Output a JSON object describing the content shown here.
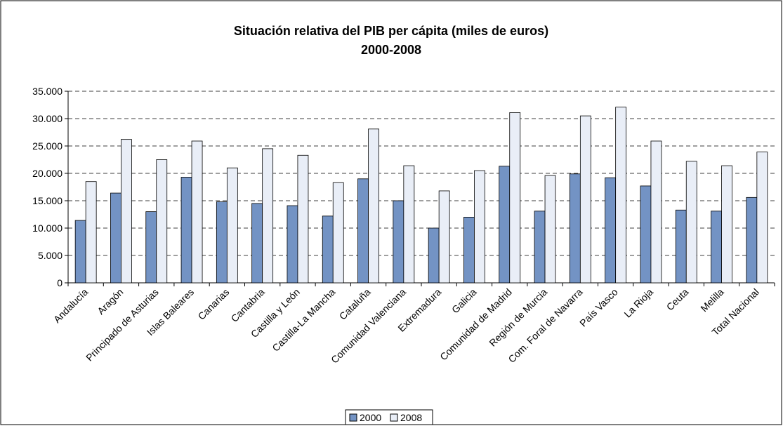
{
  "chart_data": {
    "type": "bar",
    "title": "Situación relativa del PIB per cápita (miles de euros)",
    "subtitle": "2000-2008",
    "categories": [
      "Andalucía",
      "Aragón",
      "Principado de Asturias",
      "Islas Baleares",
      "Canarias",
      "Cantabria",
      "Castilla y León",
      "Castilla-La Mancha",
      "Cataluña",
      "Comunidad Valenciana",
      "Extremadura",
      "Galicia",
      "Comunidad de Madrid",
      "Región de Murcia",
      "Com. Foral de Navarra",
      "País Vasco",
      "La Rioja",
      "Ceuta",
      "Melilla",
      "Total Nacional"
    ],
    "series": [
      {
        "name": "2000",
        "color": "#7393c4",
        "values": [
          11400,
          16400,
          13000,
          19300,
          14800,
          14500,
          14100,
          12200,
          19000,
          15000,
          10000,
          12000,
          21300,
          13100,
          19900,
          19200,
          17700,
          13300,
          13100,
          15600
        ]
      },
      {
        "name": "2008",
        "color": "#e9eef7",
        "values": [
          18500,
          26200,
          22500,
          25900,
          21000,
          24500,
          23300,
          18300,
          28100,
          21400,
          16800,
          20500,
          31100,
          19600,
          30500,
          32100,
          25900,
          22200,
          21400,
          23900
        ]
      }
    ],
    "ylim": [
      0,
      35000
    ],
    "yticks": [
      0,
      {
        "value": 5000,
        "label": "5.000"
      },
      {
        "value": 10000,
        "label": "10.000"
      },
      {
        "value": 15000,
        "label": "15.000"
      },
      {
        "value": 20000,
        "label": "20.000"
      },
      {
        "value": 25000,
        "label": "25.000"
      },
      {
        "value": 30000,
        "label": "30.000"
      },
      {
        "value": 35000,
        "label": "35.000"
      }
    ],
    "grid": true,
    "legend": "bottom"
  }
}
